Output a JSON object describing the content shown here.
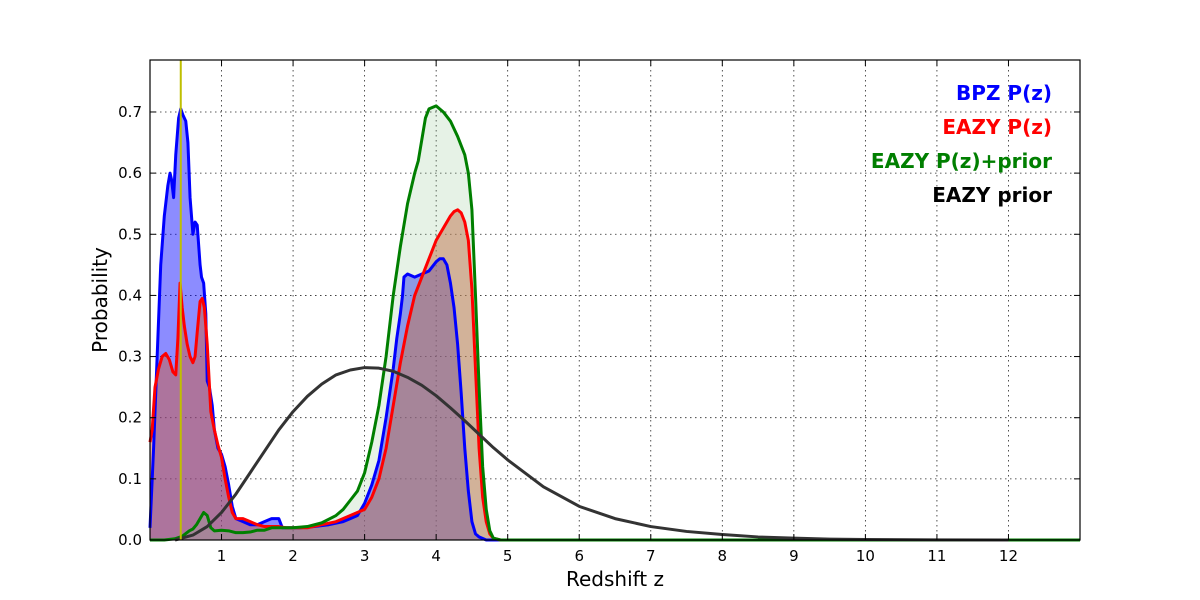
{
  "chart_data": {
    "type": "line",
    "xlabel": "Redshift z",
    "ylabel": "Probability",
    "xlim": [
      0,
      13
    ],
    "ylim": [
      0,
      0.785
    ],
    "xticks": [
      1,
      2,
      3,
      4,
      5,
      6,
      7,
      8,
      9,
      10,
      11,
      12
    ],
    "yticks": [
      0.0,
      0.1,
      0.2,
      0.3,
      0.4,
      0.5,
      0.6,
      0.7
    ],
    "grid": true,
    "legend_placement": "top-right",
    "vertical_line": {
      "x": 0.43,
      "color": "#bfbf00"
    },
    "series": [
      {
        "name": "BPZ P(z)",
        "color": "#0000ff",
        "fill": "#0000ff",
        "fill_opacity": 0.45,
        "points": [
          [
            0,
            0.02
          ],
          [
            0.05,
            0.15
          ],
          [
            0.1,
            0.3
          ],
          [
            0.15,
            0.45
          ],
          [
            0.2,
            0.53
          ],
          [
            0.25,
            0.58
          ],
          [
            0.28,
            0.6
          ],
          [
            0.3,
            0.59
          ],
          [
            0.33,
            0.56
          ],
          [
            0.36,
            0.63
          ],
          [
            0.4,
            0.69
          ],
          [
            0.43,
            0.705
          ],
          [
            0.46,
            0.695
          ],
          [
            0.5,
            0.685
          ],
          [
            0.53,
            0.65
          ],
          [
            0.56,
            0.56
          ],
          [
            0.6,
            0.5
          ],
          [
            0.63,
            0.52
          ],
          [
            0.66,
            0.515
          ],
          [
            0.7,
            0.45
          ],
          [
            0.72,
            0.43
          ],
          [
            0.75,
            0.42
          ],
          [
            0.78,
            0.37
          ],
          [
            0.8,
            0.26
          ],
          [
            0.83,
            0.25
          ],
          [
            0.87,
            0.22
          ],
          [
            0.9,
            0.18
          ],
          [
            0.95,
            0.15
          ],
          [
            1.0,
            0.14
          ],
          [
            1.05,
            0.12
          ],
          [
            1.1,
            0.09
          ],
          [
            1.15,
            0.055
          ],
          [
            1.2,
            0.035
          ],
          [
            1.3,
            0.03
          ],
          [
            1.4,
            0.025
          ],
          [
            1.5,
            0.025
          ],
          [
            1.6,
            0.03
          ],
          [
            1.7,
            0.035
          ],
          [
            1.8,
            0.035
          ],
          [
            1.85,
            0.02
          ],
          [
            1.95,
            0.02
          ],
          [
            2.1,
            0.02
          ],
          [
            2.3,
            0.022
          ],
          [
            2.5,
            0.025
          ],
          [
            2.7,
            0.03
          ],
          [
            2.8,
            0.035
          ],
          [
            2.9,
            0.04
          ],
          [
            3.0,
            0.06
          ],
          [
            3.1,
            0.09
          ],
          [
            3.2,
            0.13
          ],
          [
            3.3,
            0.2
          ],
          [
            3.4,
            0.28
          ],
          [
            3.45,
            0.33
          ],
          [
            3.5,
            0.37
          ],
          [
            3.53,
            0.4
          ],
          [
            3.55,
            0.43
          ],
          [
            3.6,
            0.435
          ],
          [
            3.7,
            0.43
          ],
          [
            3.8,
            0.435
          ],
          [
            3.9,
            0.44
          ],
          [
            4.0,
            0.455
          ],
          [
            4.05,
            0.46
          ],
          [
            4.1,
            0.46
          ],
          [
            4.15,
            0.45
          ],
          [
            4.2,
            0.42
          ],
          [
            4.25,
            0.38
          ],
          [
            4.3,
            0.32
          ],
          [
            4.35,
            0.24
          ],
          [
            4.4,
            0.15
          ],
          [
            4.45,
            0.08
          ],
          [
            4.5,
            0.03
          ],
          [
            4.55,
            0.01
          ],
          [
            4.6,
            0.005
          ],
          [
            4.7,
            0
          ],
          [
            13,
            0
          ]
        ]
      },
      {
        "name": "EAZY P(z)",
        "color": "#ff0000",
        "fill": "#cd5c3c",
        "fill_opacity": 0.5,
        "points": [
          [
            0,
            0.16
          ],
          [
            0.03,
            0.18
          ],
          [
            0.07,
            0.25
          ],
          [
            0.12,
            0.28
          ],
          [
            0.17,
            0.3
          ],
          [
            0.22,
            0.305
          ],
          [
            0.27,
            0.295
          ],
          [
            0.32,
            0.275
          ],
          [
            0.36,
            0.27
          ],
          [
            0.39,
            0.33
          ],
          [
            0.42,
            0.42
          ],
          [
            0.45,
            0.38
          ],
          [
            0.48,
            0.35
          ],
          [
            0.52,
            0.32
          ],
          [
            0.56,
            0.3
          ],
          [
            0.6,
            0.29
          ],
          [
            0.63,
            0.3
          ],
          [
            0.66,
            0.34
          ],
          [
            0.7,
            0.39
          ],
          [
            0.73,
            0.395
          ],
          [
            0.76,
            0.38
          ],
          [
            0.8,
            0.32
          ],
          [
            0.85,
            0.21
          ],
          [
            0.9,
            0.18
          ],
          [
            0.95,
            0.155
          ],
          [
            1.0,
            0.135
          ],
          [
            1.05,
            0.1
          ],
          [
            1.1,
            0.07
          ],
          [
            1.15,
            0.045
          ],
          [
            1.2,
            0.035
          ],
          [
            1.3,
            0.035
          ],
          [
            1.4,
            0.03
          ],
          [
            1.5,
            0.025
          ],
          [
            1.6,
            0.022
          ],
          [
            1.7,
            0.022
          ],
          [
            1.8,
            0.022
          ],
          [
            1.9,
            0.02
          ],
          [
            2.0,
            0.02
          ],
          [
            2.2,
            0.02
          ],
          [
            2.4,
            0.025
          ],
          [
            2.6,
            0.03
          ],
          [
            2.8,
            0.04
          ],
          [
            3.0,
            0.05
          ],
          [
            3.1,
            0.07
          ],
          [
            3.2,
            0.1
          ],
          [
            3.3,
            0.15
          ],
          [
            3.4,
            0.22
          ],
          [
            3.5,
            0.29
          ],
          [
            3.6,
            0.35
          ],
          [
            3.7,
            0.4
          ],
          [
            3.8,
            0.43
          ],
          [
            3.9,
            0.46
          ],
          [
            4.0,
            0.49
          ],
          [
            4.1,
            0.51
          ],
          [
            4.2,
            0.53
          ],
          [
            4.25,
            0.537
          ],
          [
            4.3,
            0.54
          ],
          [
            4.35,
            0.535
          ],
          [
            4.4,
            0.52
          ],
          [
            4.45,
            0.49
          ],
          [
            4.5,
            0.41
          ],
          [
            4.55,
            0.28
          ],
          [
            4.6,
            0.15
          ],
          [
            4.65,
            0.07
          ],
          [
            4.7,
            0.03
          ],
          [
            4.75,
            0.01
          ],
          [
            4.8,
            0.003
          ],
          [
            4.9,
            0
          ],
          [
            13,
            0
          ]
        ]
      },
      {
        "name": "EAZY P(z)+prior",
        "color": "#007f00",
        "fill": "#8bc48b",
        "fill_opacity": 0.22,
        "points": [
          [
            0,
            0
          ],
          [
            0.2,
            0
          ],
          [
            0.35,
            0.002
          ],
          [
            0.45,
            0.006
          ],
          [
            0.55,
            0.015
          ],
          [
            0.6,
            0.018
          ],
          [
            0.65,
            0.025
          ],
          [
            0.7,
            0.035
          ],
          [
            0.75,
            0.045
          ],
          [
            0.8,
            0.04
          ],
          [
            0.85,
            0.02
          ],
          [
            0.9,
            0.015
          ],
          [
            1.0,
            0.016
          ],
          [
            1.1,
            0.015
          ],
          [
            1.2,
            0.012
          ],
          [
            1.3,
            0.012
          ],
          [
            1.4,
            0.013
          ],
          [
            1.5,
            0.016
          ],
          [
            1.6,
            0.016
          ],
          [
            1.7,
            0.02
          ],
          [
            1.8,
            0.02
          ],
          [
            2.0,
            0.02
          ],
          [
            2.2,
            0.022
          ],
          [
            2.4,
            0.028
          ],
          [
            2.6,
            0.04
          ],
          [
            2.7,
            0.05
          ],
          [
            2.8,
            0.065
          ],
          [
            2.9,
            0.08
          ],
          [
            3.0,
            0.11
          ],
          [
            3.1,
            0.16
          ],
          [
            3.2,
            0.22
          ],
          [
            3.3,
            0.3
          ],
          [
            3.4,
            0.4
          ],
          [
            3.5,
            0.48
          ],
          [
            3.6,
            0.55
          ],
          [
            3.7,
            0.6
          ],
          [
            3.75,
            0.62
          ],
          [
            3.8,
            0.655
          ],
          [
            3.85,
            0.69
          ],
          [
            3.9,
            0.705
          ],
          [
            4.0,
            0.71
          ],
          [
            4.1,
            0.7
          ],
          [
            4.2,
            0.685
          ],
          [
            4.3,
            0.66
          ],
          [
            4.4,
            0.63
          ],
          [
            4.45,
            0.6
          ],
          [
            4.5,
            0.54
          ],
          [
            4.55,
            0.4
          ],
          [
            4.6,
            0.25
          ],
          [
            4.65,
            0.12
          ],
          [
            4.7,
            0.05
          ],
          [
            4.75,
            0.015
          ],
          [
            4.8,
            0.003
          ],
          [
            4.9,
            0
          ],
          [
            13,
            0
          ]
        ]
      },
      {
        "name": "EAZY prior",
        "color": "#333333",
        "fill": null,
        "fill_opacity": 0,
        "points": [
          [
            0.35,
            0
          ],
          [
            0.6,
            0.008
          ],
          [
            0.8,
            0.022
          ],
          [
            1.0,
            0.045
          ],
          [
            1.2,
            0.075
          ],
          [
            1.4,
            0.11
          ],
          [
            1.6,
            0.145
          ],
          [
            1.8,
            0.18
          ],
          [
            2.0,
            0.21
          ],
          [
            2.2,
            0.235
          ],
          [
            2.4,
            0.255
          ],
          [
            2.6,
            0.27
          ],
          [
            2.8,
            0.278
          ],
          [
            3.0,
            0.282
          ],
          [
            3.2,
            0.281
          ],
          [
            3.4,
            0.276
          ],
          [
            3.6,
            0.266
          ],
          [
            3.8,
            0.253
          ],
          [
            4.0,
            0.236
          ],
          [
            4.2,
            0.216
          ],
          [
            4.4,
            0.195
          ],
          [
            4.6,
            0.173
          ],
          [
            4.8,
            0.151
          ],
          [
            5.0,
            0.131
          ],
          [
            5.5,
            0.087
          ],
          [
            6.0,
            0.055
          ],
          [
            6.5,
            0.035
          ],
          [
            7.0,
            0.022
          ],
          [
            7.5,
            0.014
          ],
          [
            8.0,
            0.009
          ],
          [
            8.5,
            0.005
          ],
          [
            9.0,
            0.003
          ],
          [
            9.5,
            0.0015
          ],
          [
            10.0,
            0.0008
          ],
          [
            11.0,
            0.0002
          ],
          [
            12.0,
            0
          ]
        ]
      }
    ]
  }
}
